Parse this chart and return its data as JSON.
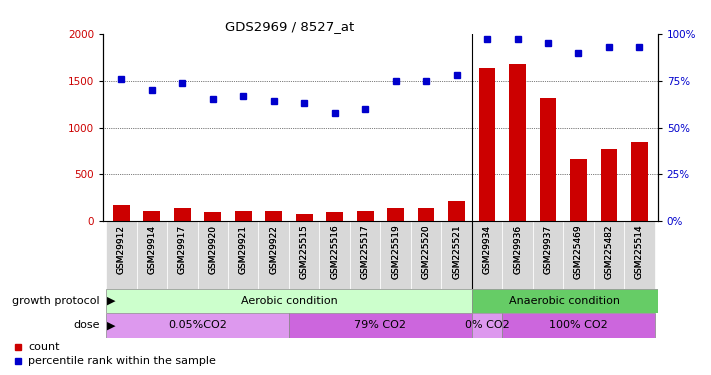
{
  "title": "GDS2969 / 8527_at",
  "samples": [
    "GSM29912",
    "GSM29914",
    "GSM29917",
    "GSM29920",
    "GSM29921",
    "GSM29922",
    "GSM225515",
    "GSM225516",
    "GSM225517",
    "GSM225519",
    "GSM225520",
    "GSM225521",
    "GSM29934",
    "GSM29936",
    "GSM29937",
    "GSM225469",
    "GSM225482",
    "GSM225514"
  ],
  "counts": [
    170,
    110,
    145,
    95,
    110,
    105,
    80,
    95,
    105,
    145,
    145,
    215,
    1640,
    1680,
    1310,
    660,
    770,
    850
  ],
  "percentiles": [
    76,
    70,
    74,
    65,
    67,
    64,
    63,
    58,
    60,
    75,
    75,
    78,
    97,
    97,
    95,
    90,
    93,
    93
  ],
  "ylim_left": [
    0,
    2000
  ],
  "ylim_right": [
    0,
    100
  ],
  "yticks_left": [
    0,
    500,
    1000,
    1500,
    2000
  ],
  "yticks_right": [
    0,
    25,
    50,
    75,
    100
  ],
  "bar_color": "#cc0000",
  "dot_color": "#0000cc",
  "aerobic_color": "#ccffcc",
  "anaerobic_color": "#66cc66",
  "dose_color1": "#dd99ee",
  "dose_color2": "#cc66dd",
  "dose_labels": [
    "0.05%CO2",
    "79% CO2",
    "0% CO2",
    "100% CO2"
  ],
  "aerobic_label": "Aerobic condition",
  "anaerobic_label": "Anaerobic condition",
  "growth_protocol_label": "growth protocol",
  "dose_label": "dose",
  "legend_count_label": "count",
  "legend_pct_label": "percentile rank within the sample",
  "dose_ranges": [
    [
      0,
      6
    ],
    [
      6,
      12
    ],
    [
      12,
      13
    ],
    [
      13,
      18
    ]
  ]
}
